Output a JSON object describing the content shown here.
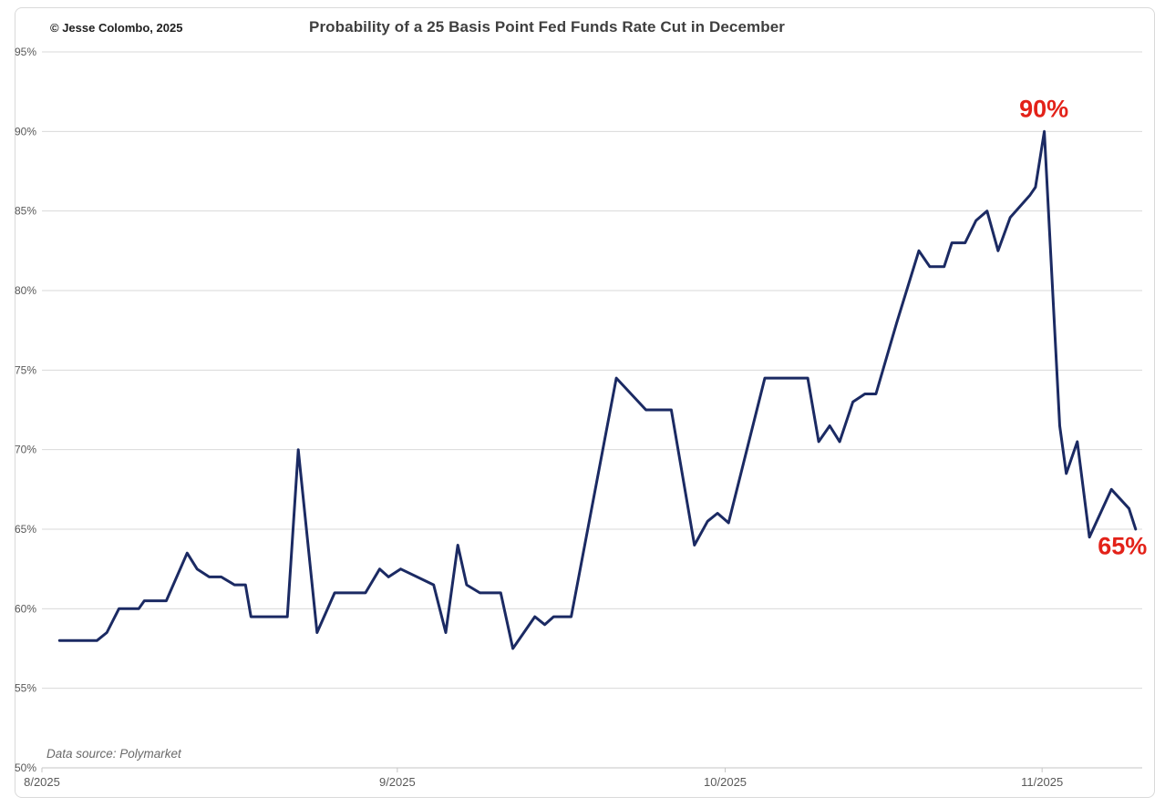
{
  "header": {
    "copyright": "© Jesse Colombo, 2025",
    "title": "Probability of a 25 Basis Point Fed Funds Rate Cut in December"
  },
  "footer": {
    "data_source": "Data source: Polymarket"
  },
  "colors": {
    "line": "#1b2a63",
    "annotation_red": "#e32219",
    "grid": "#d9d9d9",
    "axis_line": "#c6c6c6",
    "axis_text": "#595959",
    "title_text": "#3f3f3f"
  },
  "chart_data": {
    "type": "line",
    "title": "Probability of a 25 Basis Point Fed Funds Rate Cut in December",
    "grid": "horizontal",
    "legend": "none",
    "y_axis": {
      "min": 50,
      "max": 95,
      "unit": "%",
      "ticks": [
        {
          "v": 50,
          "label": "50%"
        },
        {
          "v": 55,
          "label": "55%"
        },
        {
          "v": 60,
          "label": "60%"
        },
        {
          "v": 65,
          "label": "65%"
        },
        {
          "v": 70,
          "label": "70%"
        },
        {
          "v": 75,
          "label": "75%"
        },
        {
          "v": 80,
          "label": "80%"
        },
        {
          "v": 85,
          "label": "85%"
        },
        {
          "v": 90,
          "label": "90%"
        },
        {
          "v": 95,
          "label": "95%"
        }
      ]
    },
    "x_axis": {
      "note_f_is_fraction_of_time_axis": true,
      "ticks": [
        {
          "f": 0.0,
          "label": "8/2025"
        },
        {
          "f": 0.323,
          "label": "9/2025"
        },
        {
          "f": 0.621,
          "label": "10/2025"
        },
        {
          "f": 0.909,
          "label": "11/2025"
        }
      ]
    },
    "series": [
      {
        "name": "probability-of-25bp-december-rate-cut",
        "color": "#1b2a63",
        "points": [
          [
            0.016,
            58.0
          ],
          [
            0.05,
            58.0
          ],
          [
            0.059,
            58.5
          ],
          [
            0.07,
            60.0
          ],
          [
            0.088,
            60.0
          ],
          [
            0.093,
            60.5
          ],
          [
            0.113,
            60.5
          ],
          [
            0.132,
            63.5
          ],
          [
            0.141,
            62.5
          ],
          [
            0.152,
            62.0
          ],
          [
            0.163,
            62.0
          ],
          [
            0.175,
            61.5
          ],
          [
            0.185,
            61.5
          ],
          [
            0.19,
            59.5
          ],
          [
            0.223,
            59.5
          ],
          [
            0.233,
            70.0
          ],
          [
            0.25,
            58.5
          ],
          [
            0.266,
            61.0
          ],
          [
            0.294,
            61.0
          ],
          [
            0.307,
            62.5
          ],
          [
            0.315,
            62.0
          ],
          [
            0.326,
            62.5
          ],
          [
            0.356,
            61.5
          ],
          [
            0.367,
            58.5
          ],
          [
            0.378,
            64.0
          ],
          [
            0.386,
            61.5
          ],
          [
            0.398,
            61.0
          ],
          [
            0.417,
            61.0
          ],
          [
            0.428,
            57.5
          ],
          [
            0.448,
            59.5
          ],
          [
            0.457,
            59.0
          ],
          [
            0.465,
            59.5
          ],
          [
            0.481,
            59.5
          ],
          [
            0.522,
            74.5
          ],
          [
            0.549,
            72.5
          ],
          [
            0.572,
            72.5
          ],
          [
            0.593,
            64.0
          ],
          [
            0.605,
            65.5
          ],
          [
            0.614,
            66.0
          ],
          [
            0.624,
            65.4
          ],
          [
            0.657,
            74.5
          ],
          [
            0.696,
            74.5
          ],
          [
            0.706,
            70.5
          ],
          [
            0.716,
            71.5
          ],
          [
            0.725,
            70.5
          ],
          [
            0.737,
            73.0
          ],
          [
            0.748,
            73.5
          ],
          [
            0.758,
            73.5
          ],
          [
            0.777,
            78.0
          ],
          [
            0.797,
            82.5
          ],
          [
            0.807,
            81.5
          ],
          [
            0.82,
            81.5
          ],
          [
            0.827,
            83.0
          ],
          [
            0.839,
            83.0
          ],
          [
            0.849,
            84.4
          ],
          [
            0.859,
            85.0
          ],
          [
            0.869,
            82.5
          ],
          [
            0.88,
            84.6
          ],
          [
            0.898,
            86.0
          ],
          [
            0.903,
            86.5
          ],
          [
            0.911,
            90.0
          ],
          [
            0.925,
            71.5
          ],
          [
            0.931,
            68.5
          ],
          [
            0.941,
            70.5
          ],
          [
            0.952,
            64.5
          ],
          [
            0.972,
            67.5
          ],
          [
            0.988,
            66.3
          ],
          [
            0.994,
            65.0
          ]
        ]
      }
    ],
    "annotations": [
      {
        "text": "90%",
        "f": 0.9106,
        "v": 91.4
      },
      {
        "text": "65%",
        "f": 0.982,
        "v": 63.9
      }
    ]
  }
}
